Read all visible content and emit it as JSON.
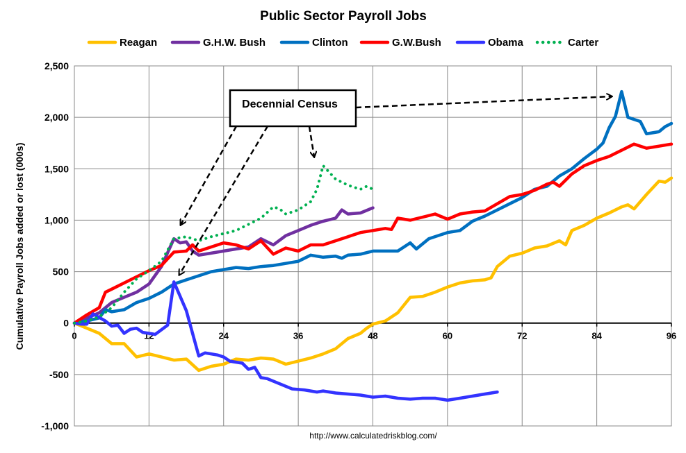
{
  "chart_data": {
    "type": "line",
    "title": "Public Sector Payroll Jobs",
    "xlabel": "",
    "ylabel": "Cumulative Payroll Jobs added or lost (000s)",
    "xlim": [
      0,
      96
    ],
    "ylim": [
      -1000,
      2500
    ],
    "xticks": [
      0,
      12,
      24,
      36,
      48,
      60,
      72,
      84,
      96
    ],
    "yticks": [
      -1000,
      -500,
      0,
      500,
      1000,
      1500,
      2000,
      2500
    ],
    "ytick_labels": [
      "-1,000",
      "-500",
      "0",
      "500",
      "1,000",
      "1,500",
      "2,000",
      "2,500"
    ],
    "grid": true,
    "legend_position": "top",
    "source": "http://www.calculatedriskblog.com/",
    "annotation": "Decennial Census",
    "series": [
      {
        "name": "Reagan",
        "color": "#FFC000",
        "style": "solid",
        "x": [
          0,
          2,
          4,
          6,
          8,
          10,
          12,
          14,
          16,
          18,
          20,
          22,
          24,
          26,
          28,
          30,
          32,
          34,
          36,
          38,
          40,
          42,
          44,
          46,
          47,
          48,
          50,
          52,
          54,
          56,
          58,
          60,
          62,
          64,
          66,
          67,
          68,
          70,
          72,
          74,
          76,
          78,
          79,
          80,
          82,
          84,
          86,
          88,
          89,
          90,
          92,
          94,
          95,
          96
        ],
        "y": [
          0,
          -50,
          -100,
          -200,
          -200,
          -330,
          -300,
          -330,
          -360,
          -350,
          -460,
          -420,
          -400,
          -350,
          -360,
          -340,
          -350,
          -400,
          -370,
          -340,
          -300,
          -250,
          -150,
          -100,
          -50,
          -10,
          20,
          100,
          250,
          260,
          300,
          350,
          390,
          410,
          420,
          440,
          550,
          650,
          680,
          730,
          750,
          800,
          760,
          900,
          950,
          1020,
          1070,
          1130,
          1150,
          1110,
          1250,
          1380,
          1370,
          1410
        ]
      },
      {
        "name": "G.H.W. Bush",
        "color": "#7030A0",
        "style": "solid",
        "x": [
          0,
          2,
          4,
          6,
          8,
          10,
          12,
          14,
          16,
          17,
          18,
          19,
          20,
          22,
          24,
          26,
          28,
          30,
          32,
          34,
          36,
          38,
          40,
          42,
          43,
          44,
          46,
          48
        ],
        "y": [
          0,
          50,
          100,
          200,
          250,
          300,
          380,
          550,
          820,
          780,
          790,
          700,
          660,
          680,
          700,
          720,
          740,
          820,
          760,
          850,
          900,
          950,
          990,
          1020,
          1100,
          1060,
          1070,
          1120
        ]
      },
      {
        "name": "Clinton",
        "color": "#0070C0",
        "style": "solid",
        "x": [
          0,
          2,
          4,
          5,
          6,
          8,
          10,
          12,
          14,
          16,
          18,
          20,
          22,
          24,
          26,
          28,
          30,
          32,
          34,
          36,
          38,
          40,
          42,
          43,
          44,
          46,
          48,
          52,
          54,
          55,
          57,
          60,
          62,
          64,
          66,
          68,
          70,
          72,
          74,
          76,
          78,
          80,
          82,
          84,
          85,
          86,
          87,
          88,
          89,
          91,
          92,
          94,
          95,
          96
        ],
        "y": [
          0,
          20,
          50,
          130,
          110,
          130,
          200,
          240,
          300,
          380,
          420,
          460,
          500,
          520,
          540,
          530,
          550,
          560,
          580,
          600,
          660,
          640,
          650,
          630,
          660,
          670,
          700,
          700,
          780,
          720,
          820,
          880,
          900,
          990,
          1040,
          1100,
          1160,
          1220,
          1300,
          1330,
          1430,
          1500,
          1600,
          1690,
          1750,
          1900,
          2010,
          2250,
          2000,
          1960,
          1840,
          1860,
          1910,
          1940
        ]
      },
      {
        "name": "G.W.Bush",
        "color": "#FF0000",
        "style": "solid",
        "x": [
          0,
          2,
          4,
          5,
          6,
          8,
          10,
          12,
          14,
          16,
          18,
          19,
          20,
          22,
          24,
          26,
          28,
          30,
          32,
          34,
          36,
          38,
          40,
          42,
          44,
          46,
          48,
          50,
          51,
          52,
          54,
          56,
          58,
          60,
          62,
          64,
          66,
          68,
          70,
          72,
          74,
          76,
          77,
          78,
          80,
          82,
          84,
          86,
          88,
          90,
          92,
          94,
          96
        ],
        "y": [
          0,
          80,
          150,
          300,
          330,
          390,
          450,
          510,
          560,
          690,
          700,
          760,
          700,
          740,
          780,
          760,
          720,
          800,
          670,
          730,
          700,
          760,
          760,
          800,
          840,
          880,
          900,
          920,
          910,
          1020,
          1000,
          1030,
          1060,
          1010,
          1060,
          1080,
          1090,
          1160,
          1230,
          1250,
          1290,
          1350,
          1370,
          1330,
          1450,
          1530,
          1580,
          1620,
          1680,
          1740,
          1700,
          1720,
          1740
        ]
      },
      {
        "name": "Obama",
        "color": "#3333FF",
        "style": "solid",
        "x": [
          0,
          1,
          2,
          3,
          5,
          6,
          7,
          8,
          9,
          10,
          11,
          13,
          15,
          16,
          18,
          20,
          21,
          23,
          24,
          25,
          27,
          28,
          29,
          30,
          31,
          33,
          35,
          37,
          39,
          40,
          42,
          44,
          46,
          48,
          50,
          52,
          54,
          56,
          58,
          60,
          62,
          64,
          66,
          68
        ],
        "y": [
          0,
          -10,
          -10,
          90,
          20,
          -30,
          -20,
          -100,
          -60,
          -50,
          -90,
          -110,
          -20,
          400,
          120,
          -320,
          -290,
          -310,
          -330,
          -370,
          -390,
          -450,
          -430,
          -530,
          -540,
          -590,
          -640,
          -650,
          -670,
          -660,
          -680,
          -690,
          -700,
          -720,
          -710,
          -730,
          -740,
          -730,
          -730,
          -750,
          -730,
          -710,
          -690,
          -670
        ]
      },
      {
        "name": "Carter",
        "color": "#00B050",
        "style": "dotted",
        "x": [
          0,
          2,
          4,
          6,
          8,
          10,
          12,
          14,
          16,
          18,
          20,
          22,
          24,
          26,
          28,
          30,
          32,
          33,
          34,
          36,
          38,
          39,
          40,
          42,
          44,
          46,
          47,
          48
        ],
        "y": [
          0,
          20,
          60,
          150,
          300,
          430,
          510,
          600,
          820,
          840,
          800,
          840,
          870,
          900,
          960,
          1020,
          1130,
          1110,
          1060,
          1100,
          1180,
          1300,
          1530,
          1400,
          1340,
          1300,
          1330,
          1300
        ]
      }
    ]
  }
}
